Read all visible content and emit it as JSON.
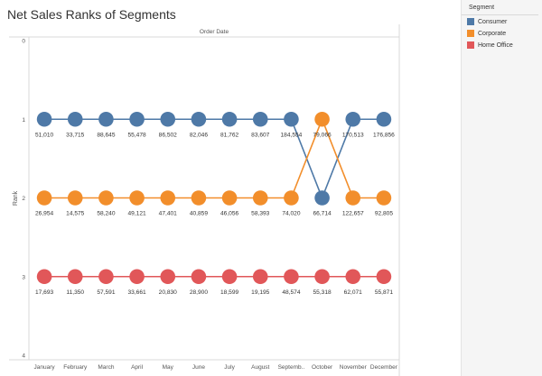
{
  "chart_data": {
    "type": "line",
    "title": "Net Sales Ranks of Segments",
    "top_axis_label": "Order Date",
    "ylabel": "Rank",
    "ylim": [
      0,
      4
    ],
    "y_reversed": true,
    "y_ticks": [
      "0",
      "1",
      "2",
      "3",
      "4"
    ],
    "grid": false,
    "legend_position": "right",
    "categories": [
      "January",
      "February",
      "March",
      "April",
      "May",
      "June",
      "July",
      "August",
      "Septemb..",
      "October",
      "November",
      "December"
    ],
    "series": [
      {
        "name": "Consumer",
        "color": "#4e79a7",
        "ranks": [
          1,
          1,
          1,
          1,
          1,
          1,
          1,
          1,
          1,
          2,
          1,
          1
        ],
        "values": [
          "51,010",
          "33,715",
          "88,645",
          "55,478",
          "86,502",
          "82,046",
          "81,762",
          "83,607",
          "184,554",
          "66,714",
          "170,513",
          "176,856"
        ]
      },
      {
        "name": "Corporate",
        "color": "#f28e2b",
        "ranks": [
          2,
          2,
          2,
          2,
          2,
          2,
          2,
          2,
          2,
          1,
          2,
          2
        ],
        "values": [
          "26,954",
          "14,575",
          "58,240",
          "49,121",
          "47,401",
          "40,859",
          "46,056",
          "58,393",
          "74,020",
          "79,066",
          "122,657",
          "92,805"
        ]
      },
      {
        "name": "Home Office",
        "color": "#e15759",
        "ranks": [
          3,
          3,
          3,
          3,
          3,
          3,
          3,
          3,
          3,
          3,
          3,
          3
        ],
        "values": [
          "17,693",
          "11,350",
          "57,591",
          "33,661",
          "20,830",
          "28,900",
          "18,599",
          "19,195",
          "48,574",
          "55,318",
          "62,071",
          "55,871"
        ]
      }
    ]
  },
  "legend": {
    "title": "Segment",
    "items": [
      {
        "label": "Consumer",
        "color": "#4e79a7"
      },
      {
        "label": "Corporate",
        "color": "#f28e2b"
      },
      {
        "label": "Home Office",
        "color": "#e15759"
      }
    ]
  }
}
